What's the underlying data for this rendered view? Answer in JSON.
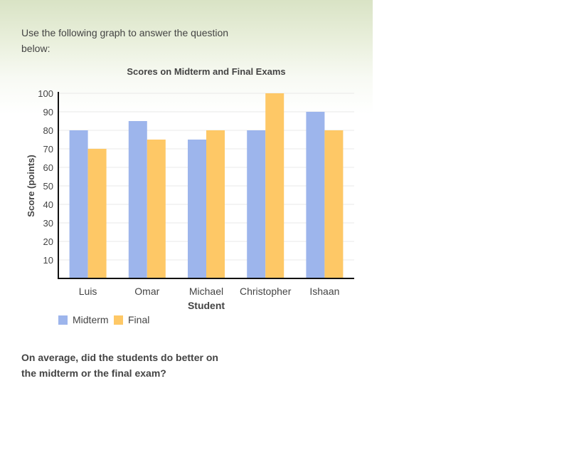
{
  "intro_text": "Use the following graph to answer the question below:",
  "question_text": "On average, did the students do better on the midterm or the final exam?",
  "colors": {
    "midterm": "#9db5ec",
    "final": "#fec866",
    "axis": "#111111",
    "grid": "#e8e8e8",
    "text": "#444444"
  },
  "chart_data": {
    "type": "bar",
    "title": "Scores on Midterm and Final Exams",
    "xlabel": "Student",
    "ylabel": "Score (points)",
    "categories": [
      "Luis",
      "Omar",
      "Michael",
      "Christopher",
      "Ishaan"
    ],
    "series": [
      {
        "name": "Midterm",
        "values": [
          80,
          85,
          75,
          80,
          90
        ]
      },
      {
        "name": "Final",
        "values": [
          70,
          75,
          80,
          100,
          80
        ]
      }
    ],
    "ylim": [
      0,
      100
    ],
    "yticks": [
      10,
      20,
      30,
      40,
      50,
      60,
      70,
      80,
      90,
      100
    ],
    "grid": true,
    "legend_position": "bottom-left"
  }
}
